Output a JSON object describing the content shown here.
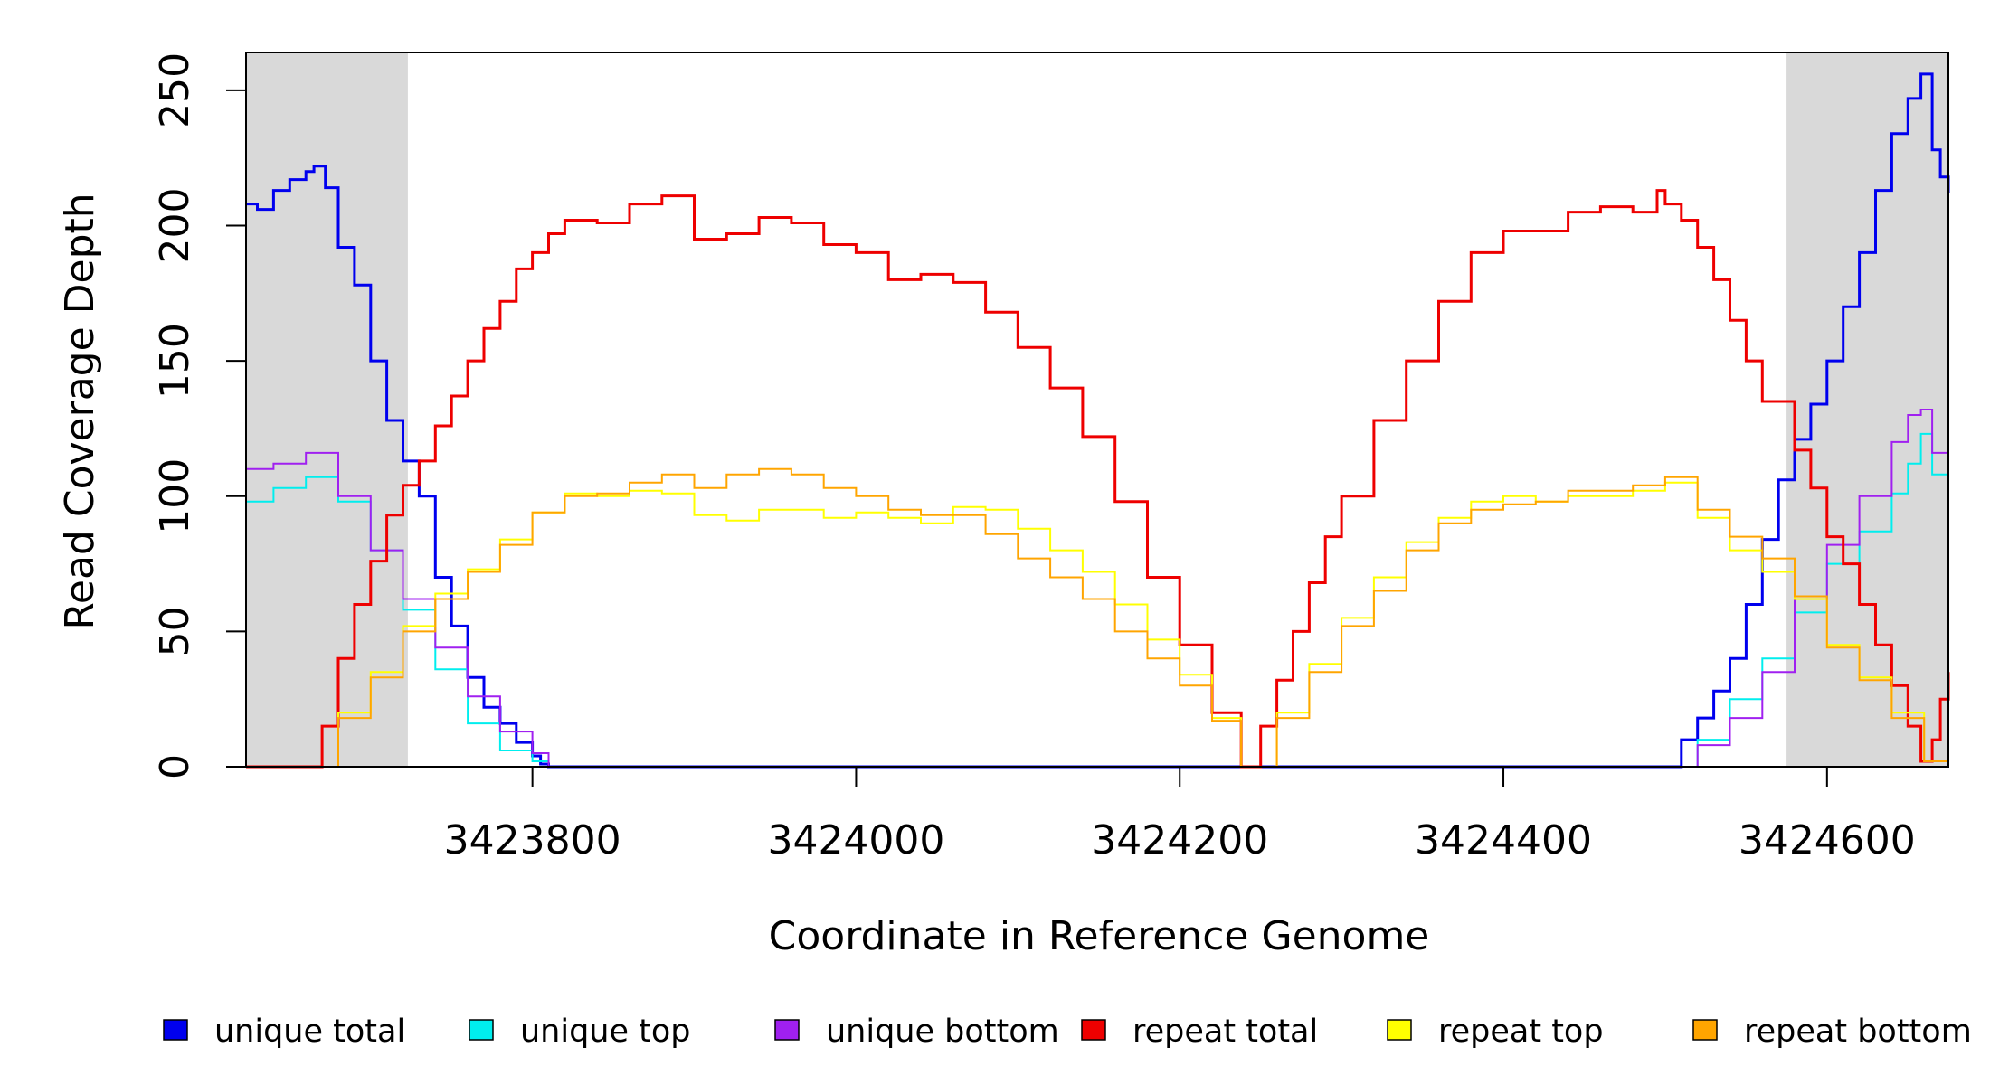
{
  "chart_data": {
    "type": "line",
    "xlabel": "Coordinate in Reference Genome",
    "ylabel": "Read Coverage Depth",
    "xlim": [
      3423623,
      3424675
    ],
    "ylim": [
      0,
      264
    ],
    "x_ticks": [
      3423800,
      3424000,
      3424200,
      3424400,
      3424600
    ],
    "x_tick_labels": [
      "3423800",
      "3424000",
      "3424200",
      "3424400",
      "3424600"
    ],
    "y_ticks": [
      0,
      50,
      100,
      150,
      200,
      250
    ],
    "y_tick_labels": [
      "0",
      "50",
      "100",
      "150",
      "200",
      "250"
    ],
    "shaded_regions": [
      {
        "x0": 3423623,
        "x1": 3423723,
        "color": "#d9d9d9"
      },
      {
        "x0": 3424575,
        "x1": 3424675,
        "color": "#d9d9d9"
      }
    ],
    "legend_position": "bottom",
    "series": [
      {
        "name": "unique total",
        "color": "#0000ee",
        "width": 3,
        "x": [
          3423623,
          3423630,
          3423640,
          3423650,
          3423660,
          3423665,
          3423672,
          3423680,
          3423690,
          3423700,
          3423710,
          3423720,
          3423730,
          3423740,
          3423750,
          3423760,
          3423770,
          3423780,
          3423790,
          3423800,
          3423805,
          3423810,
          3424504,
          3424510,
          3424520,
          3424530,
          3424540,
          3424550,
          3424560,
          3424570,
          3424580,
          3424590,
          3424600,
          3424610,
          3424620,
          3424630,
          3424640,
          3424650,
          3424658,
          3424665,
          3424670,
          3424675
        ],
        "y": [
          208,
          206,
          213,
          217,
          220,
          222,
          214,
          192,
          178,
          150,
          128,
          113,
          100,
          70,
          52,
          33,
          22,
          16,
          9,
          4,
          1,
          0,
          0,
          10,
          18,
          28,
          40,
          60,
          84,
          106,
          121,
          134,
          150,
          170,
          190,
          213,
          234,
          247,
          256,
          228,
          218,
          212
        ]
      },
      {
        "name": "unique top",
        "color": "#00eeee",
        "width": 2,
        "x": [
          3423623,
          3423640,
          3423660,
          3423680,
          3423700,
          3423720,
          3423740,
          3423760,
          3423780,
          3423800,
          3423810,
          3424504,
          3424520,
          3424540,
          3424560,
          3424580,
          3424600,
          3424620,
          3424640,
          3424650,
          3424658,
          3424665,
          3424675
        ],
        "y": [
          98,
          103,
          107,
          98,
          80,
          58,
          36,
          16,
          6,
          2,
          0,
          0,
          10,
          25,
          40,
          57,
          75,
          87,
          101,
          112,
          123,
          108,
          103
        ]
      },
      {
        "name": "unique bottom",
        "color": "#a020f0",
        "width": 2,
        "x": [
          3423623,
          3423640,
          3423660,
          3423680,
          3423700,
          3423720,
          3423740,
          3423760,
          3423780,
          3423800,
          3423810,
          3424504,
          3424520,
          3424540,
          3424560,
          3424580,
          3424600,
          3424620,
          3424640,
          3424650,
          3424658,
          3424665,
          3424675
        ],
        "y": [
          110,
          112,
          116,
          100,
          80,
          62,
          44,
          26,
          13,
          5,
          0,
          0,
          8,
          18,
          35,
          62,
          82,
          100,
          120,
          130,
          132,
          116,
          113
        ]
      },
      {
        "name": "repeat total",
        "color": "#ee0000",
        "width": 3,
        "x": [
          3423623,
          3423662,
          3423670,
          3423680,
          3423690,
          3423700,
          3423710,
          3423720,
          3423730,
          3423740,
          3423750,
          3423760,
          3423770,
          3423780,
          3423790,
          3423800,
          3423810,
          3423820,
          3423840,
          3423860,
          3423880,
          3423900,
          3423920,
          3423940,
          3423960,
          3423980,
          3424000,
          3424020,
          3424040,
          3424060,
          3424080,
          3424100,
          3424120,
          3424140,
          3424160,
          3424180,
          3424200,
          3424220,
          3424238,
          3424250,
          3424260,
          3424270,
          3424280,
          3424290,
          3424300,
          3424320,
          3424340,
          3424360,
          3424380,
          3424400,
          3424420,
          3424440,
          3424460,
          3424480,
          3424495,
          3424500,
          3424510,
          3424520,
          3424530,
          3424540,
          3424550,
          3424560,
          3424570,
          3424580,
          3424590,
          3424600,
          3424610,
          3424620,
          3424630,
          3424640,
          3424650,
          3424658,
          3424665,
          3424670,
          3424675
        ],
        "y": [
          0,
          0,
          15,
          40,
          60,
          76,
          93,
          104,
          113,
          126,
          137,
          150,
          162,
          172,
          184,
          190,
          197,
          202,
          201,
          208,
          211,
          195,
          197,
          203,
          201,
          193,
          190,
          180,
          182,
          179,
          168,
          155,
          140,
          122,
          98,
          70,
          45,
          20,
          0,
          15,
          32,
          50,
          68,
          85,
          100,
          128,
          150,
          172,
          190,
          198,
          198,
          205,
          207,
          205,
          213,
          208,
          202,
          192,
          180,
          165,
          150,
          135,
          135,
          117,
          103,
          85,
          75,
          60,
          45,
          30,
          15,
          2,
          10,
          25,
          35
        ]
      },
      {
        "name": "repeat top",
        "color": "#ffff00",
        "width": 2,
        "x": [
          3423623,
          3423662,
          3423680,
          3423700,
          3423720,
          3423740,
          3423760,
          3423780,
          3423800,
          3423820,
          3423840,
          3423860,
          3423880,
          3423900,
          3423920,
          3423940,
          3423960,
          3423980,
          3424000,
          3424020,
          3424040,
          3424060,
          3424080,
          3424100,
          3424120,
          3424140,
          3424160,
          3424180,
          3424200,
          3424220,
          3424238,
          3424260,
          3424280,
          3424300,
          3424320,
          3424340,
          3424360,
          3424380,
          3424400,
          3424420,
          3424440,
          3424460,
          3424480,
          3424500,
          3424520,
          3424540,
          3424560,
          3424580,
          3424600,
          3424620,
          3424640,
          3424660,
          3424675
        ],
        "y": [
          0,
          0,
          20,
          35,
          52,
          64,
          73,
          84,
          94,
          101,
          100,
          102,
          101,
          93,
          91,
          95,
          95,
          92,
          94,
          92,
          90,
          96,
          95,
          88,
          80,
          72,
          60,
          47,
          34,
          18,
          0,
          20,
          38,
          55,
          70,
          83,
          92,
          98,
          100,
          98,
          100,
          100,
          102,
          105,
          92,
          80,
          72,
          62,
          45,
          33,
          20,
          2,
          18
        ]
      },
      {
        "name": "repeat bottom",
        "color": "#ffa500",
        "width": 2,
        "x": [
          3423623,
          3423662,
          3423680,
          3423700,
          3423720,
          3423740,
          3423760,
          3423780,
          3423800,
          3423820,
          3423840,
          3423860,
          3423880,
          3423900,
          3423920,
          3423940,
          3423960,
          3423980,
          3424000,
          3424020,
          3424040,
          3424060,
          3424080,
          3424100,
          3424120,
          3424140,
          3424160,
          3424180,
          3424200,
          3424220,
          3424238,
          3424260,
          3424280,
          3424300,
          3424320,
          3424340,
          3424360,
          3424380,
          3424400,
          3424420,
          3424440,
          3424460,
          3424480,
          3424500,
          3424520,
          3424540,
          3424560,
          3424580,
          3424600,
          3424620,
          3424640,
          3424660,
          3424675
        ],
        "y": [
          0,
          0,
          18,
          33,
          50,
          62,
          72,
          82,
          94,
          100,
          101,
          105,
          108,
          103,
          108,
          110,
          108,
          103,
          100,
          95,
          93,
          93,
          86,
          77,
          70,
          62,
          50,
          40,
          30,
          17,
          0,
          18,
          35,
          52,
          65,
          80,
          90,
          95,
          97,
          98,
          102,
          102,
          104,
          107,
          95,
          85,
          77,
          63,
          44,
          32,
          18,
          2,
          15
        ]
      }
    ]
  }
}
